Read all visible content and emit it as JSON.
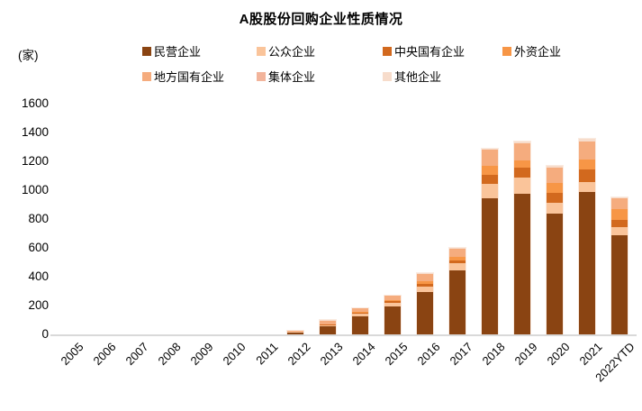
{
  "title": "A股股份回购企业性质情况",
  "y_axis": {
    "unit": "(家)",
    "ticks": [
      0,
      200,
      400,
      600,
      800,
      1000,
      1200,
      1400,
      1600
    ],
    "max": 1600
  },
  "x_axis": {
    "categories": [
      "2005",
      "2006",
      "2007",
      "2008",
      "2009",
      "2010",
      "2011",
      "2012",
      "2013",
      "2014",
      "2015",
      "2016",
      "2017",
      "2018",
      "2019",
      "2020",
      "2021",
      "2022YTD"
    ]
  },
  "legend": {
    "items": [
      "民营企业",
      "公众企业",
      "中央国有企业",
      "外资企业",
      "地方国有企业",
      "集体企业",
      "其他企业"
    ]
  },
  "colors": {
    "baseline": "#D9D9D9",
    "background": "#FFFFFF"
  },
  "chart_data": {
    "type": "bar",
    "stacked": true,
    "title": "A股股份回购企业性质情况",
    "xlabel": "",
    "ylabel": "(家)",
    "ylim": [
      0,
      1600
    ],
    "grid": false,
    "legend_position": "top",
    "categories": [
      "2005",
      "2006",
      "2007",
      "2008",
      "2009",
      "2010",
      "2011",
      "2012",
      "2013",
      "2014",
      "2015",
      "2016",
      "2017",
      "2018",
      "2019",
      "2020",
      "2021",
      "2022YTD"
    ],
    "series": [
      {
        "name": "民营企业",
        "color": "#8A4412",
        "values": [
          0,
          0,
          0,
          0,
          0,
          0,
          0,
          15,
          55,
          125,
          195,
          294,
          444,
          944,
          975,
          837,
          988,
          688
        ]
      },
      {
        "name": "公众企业",
        "color": "#FAC49A",
        "values": [
          0,
          0,
          0,
          0,
          0,
          0,
          0,
          3,
          8,
          16,
          25,
          38,
          50,
          100,
          112,
          75,
          69,
          56
        ]
      },
      {
        "name": "中央国有企业",
        "color": "#D2691E",
        "values": [
          0,
          0,
          0,
          0,
          0,
          0,
          0,
          2,
          5,
          8,
          9,
          19,
          19,
          62,
          69,
          69,
          88,
          50
        ]
      },
      {
        "name": "外资企业",
        "color": "#F79646",
        "values": [
          0,
          0,
          0,
          0,
          0,
          0,
          0,
          0,
          4,
          6,
          10,
          19,
          25,
          62,
          50,
          69,
          69,
          75
        ]
      },
      {
        "name": "地方国有企业",
        "color": "#F5AC7E",
        "values": [
          0,
          0,
          0,
          0,
          0,
          0,
          0,
          6,
          25,
          25,
          31,
          50,
          56,
          111,
          117,
          104,
          123,
          78
        ]
      },
      {
        "name": "集体企业",
        "color": "#F2B49B",
        "values": [
          0,
          0,
          0,
          0,
          0,
          0,
          0,
          0,
          0,
          0,
          0,
          0,
          2,
          2,
          2,
          2,
          2,
          0
        ]
      },
      {
        "name": "其他企业",
        "color": "#F7DCCB",
        "values": [
          0,
          0,
          0,
          0,
          0,
          0,
          0,
          0,
          3,
          0,
          0,
          6,
          4,
          9,
          12,
          13,
          19,
          3
        ]
      }
    ],
    "totals": [
      0,
      0,
      0,
      0,
      0,
      0,
      0,
      26,
      100,
      180,
      270,
      426,
      600,
      1290,
      1337,
      1169,
      1358,
      950
    ]
  }
}
